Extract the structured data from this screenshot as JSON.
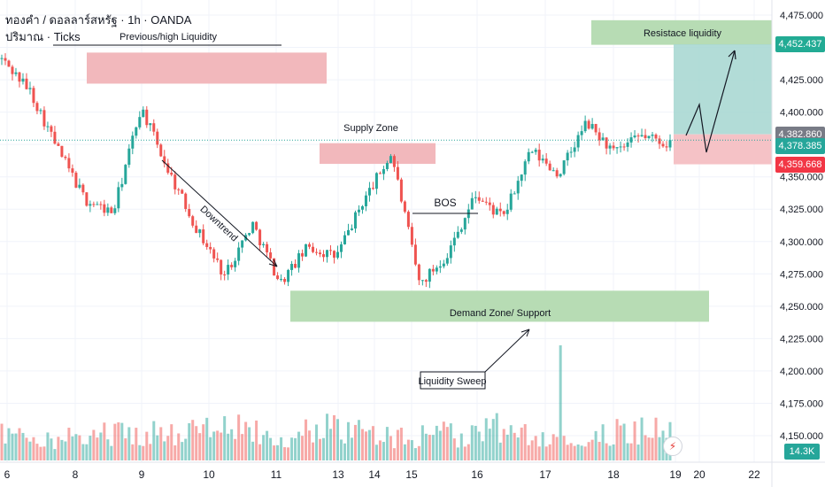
{
  "header": {
    "line1": "ทองคำ / ดอลลาร์สหรัฐ · 1h · OANDA",
    "line2": "ปริมาณ · Ticks"
  },
  "colors": {
    "up": "#26a69a",
    "down": "#ef5350",
    "supply": "#f2b8bc",
    "demand": "#b7dcb4",
    "tpbox": "#a5d6d0",
    "slbox": "#f5c2c6",
    "grid": "#f0f3fa"
  },
  "annotations": {
    "prev_high": "Previous/high Liquidity",
    "supply": "Supply Zone",
    "downtrend": "Downtrend",
    "bos": "BOS",
    "demand": "Demand Zone/ Support",
    "sweep": "Liquidity Sweep",
    "resistance": "Resistace liquidity"
  },
  "price_badges": {
    "tp": "4,452.437",
    "entry": "4,382.860",
    "current": "4,378.385",
    "sl": "4,359.668",
    "volume": "14.3K"
  },
  "chart_data": {
    "type": "candlestick",
    "instrument": "ทองคำ / ดอลลาร์สหรัฐ",
    "timeframe": "1h",
    "y_ticks": [
      4475,
      4450,
      4425,
      4400,
      4375,
      4350,
      4325,
      4300,
      4275,
      4250,
      4225,
      4200,
      4175,
      4150
    ],
    "y_tick_labels": [
      "4,475.000",
      "4,450.000",
      "4,425.000",
      "4,400.000",
      "4,375.000",
      "4,350.000",
      "4,325.000",
      "4,300.000",
      "4,275.000",
      "4,250.000",
      "4,225.000",
      "4,200.000",
      "4,175.000",
      "4,150.000"
    ],
    "ylim": [
      4138,
      4482
    ],
    "x_labels": [
      "6",
      "8",
      "9",
      "10",
      "11",
      "13",
      "14",
      "15",
      "16",
      "17",
      "18",
      "19",
      "20",
      "22"
    ],
    "zones": {
      "previous_high_liquidity": [
        4422,
        4446
      ],
      "supply_zone": [
        4360,
        4376
      ],
      "demand_zone": [
        4238,
        4262
      ],
      "resistance_liquidity": [
        4452,
        4471
      ]
    },
    "trade": {
      "tp": 4452.437,
      "entry": 4382.86,
      "sl": 4359.668,
      "current": 4378.385
    },
    "swing_path": [
      4441,
      4417,
      4372,
      4332,
      4322,
      4404,
      4354,
      4310,
      4274,
      4314,
      4268,
      4296,
      4288,
      4332,
      4368,
      4267,
      4290,
      4336,
      4318,
      4370,
      4352,
      4392,
      4368,
      4382,
      4375
    ],
    "volume_path": [
      33,
      30,
      28,
      32,
      36,
      34,
      30,
      38,
      40,
      35,
      32,
      48,
      36,
      32,
      28,
      34,
      30,
      40,
      36,
      32,
      30,
      34,
      38,
      45
    ]
  }
}
